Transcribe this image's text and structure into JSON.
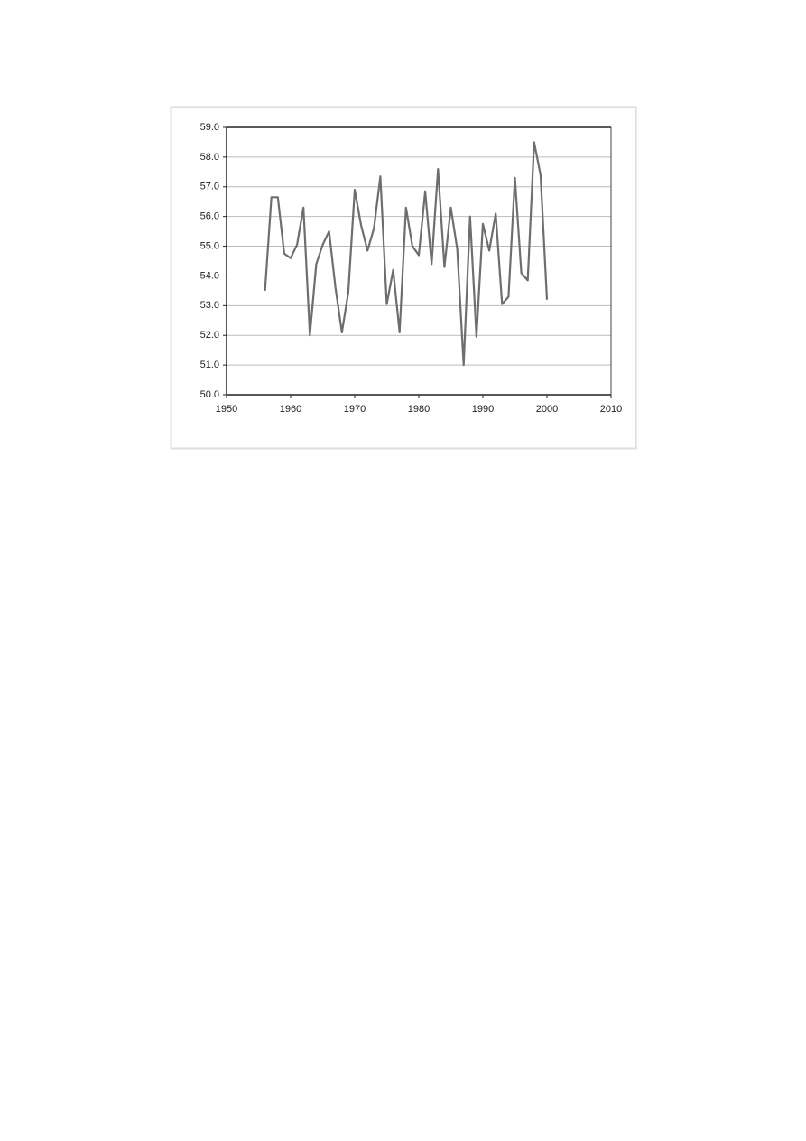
{
  "chart_data": {
    "type": "line",
    "x": [
      1956,
      1957,
      1958,
      1959,
      1960,
      1961,
      1962,
      1963,
      1964,
      1965,
      1966,
      1967,
      1968,
      1969,
      1970,
      1971,
      1972,
      1973,
      1974,
      1975,
      1976,
      1977,
      1978,
      1979,
      1980,
      1981,
      1982,
      1983,
      1984,
      1985,
      1986,
      1987,
      1988,
      1989,
      1990,
      1991,
      1992,
      1993,
      1994,
      1995,
      1996,
      1997,
      1998,
      1999,
      2000
    ],
    "values": [
      53.5,
      56.65,
      56.65,
      54.75,
      54.6,
      55.05,
      56.3,
      52.0,
      54.4,
      55.05,
      55.5,
      53.6,
      52.1,
      53.45,
      56.9,
      55.7,
      54.85,
      55.6,
      57.35,
      53.05,
      54.2,
      52.1,
      56.3,
      55.0,
      54.7,
      56.85,
      54.4,
      57.6,
      54.3,
      56.3,
      54.9,
      51.0,
      56.0,
      51.95,
      55.75,
      54.85,
      56.1,
      53.05,
      53.3,
      57.3,
      54.1,
      53.85,
      58.5,
      57.4,
      53.2
    ],
    "color": "#6e6e6e",
    "xlim": [
      1950,
      2010
    ],
    "xticks": [
      1950,
      1960,
      1970,
      1980,
      1990,
      2000,
      2010
    ],
    "ylim": [
      50,
      59
    ],
    "yticks": [
      {
        "value": 50,
        "label": "50.0"
      },
      {
        "value": 51,
        "label": "51.0"
      },
      {
        "value": 52,
        "label": "52.0"
      },
      {
        "value": 53,
        "label": "53.0"
      },
      {
        "value": 54,
        "label": "54.0"
      },
      {
        "value": 55,
        "label": "55.0"
      },
      {
        "value": 56,
        "label": "56.0"
      },
      {
        "value": 57,
        "label": "57.0"
      },
      {
        "value": 58,
        "label": "58.0"
      },
      {
        "value": 59,
        "label": "59.0"
      }
    ],
    "grid": true
  }
}
